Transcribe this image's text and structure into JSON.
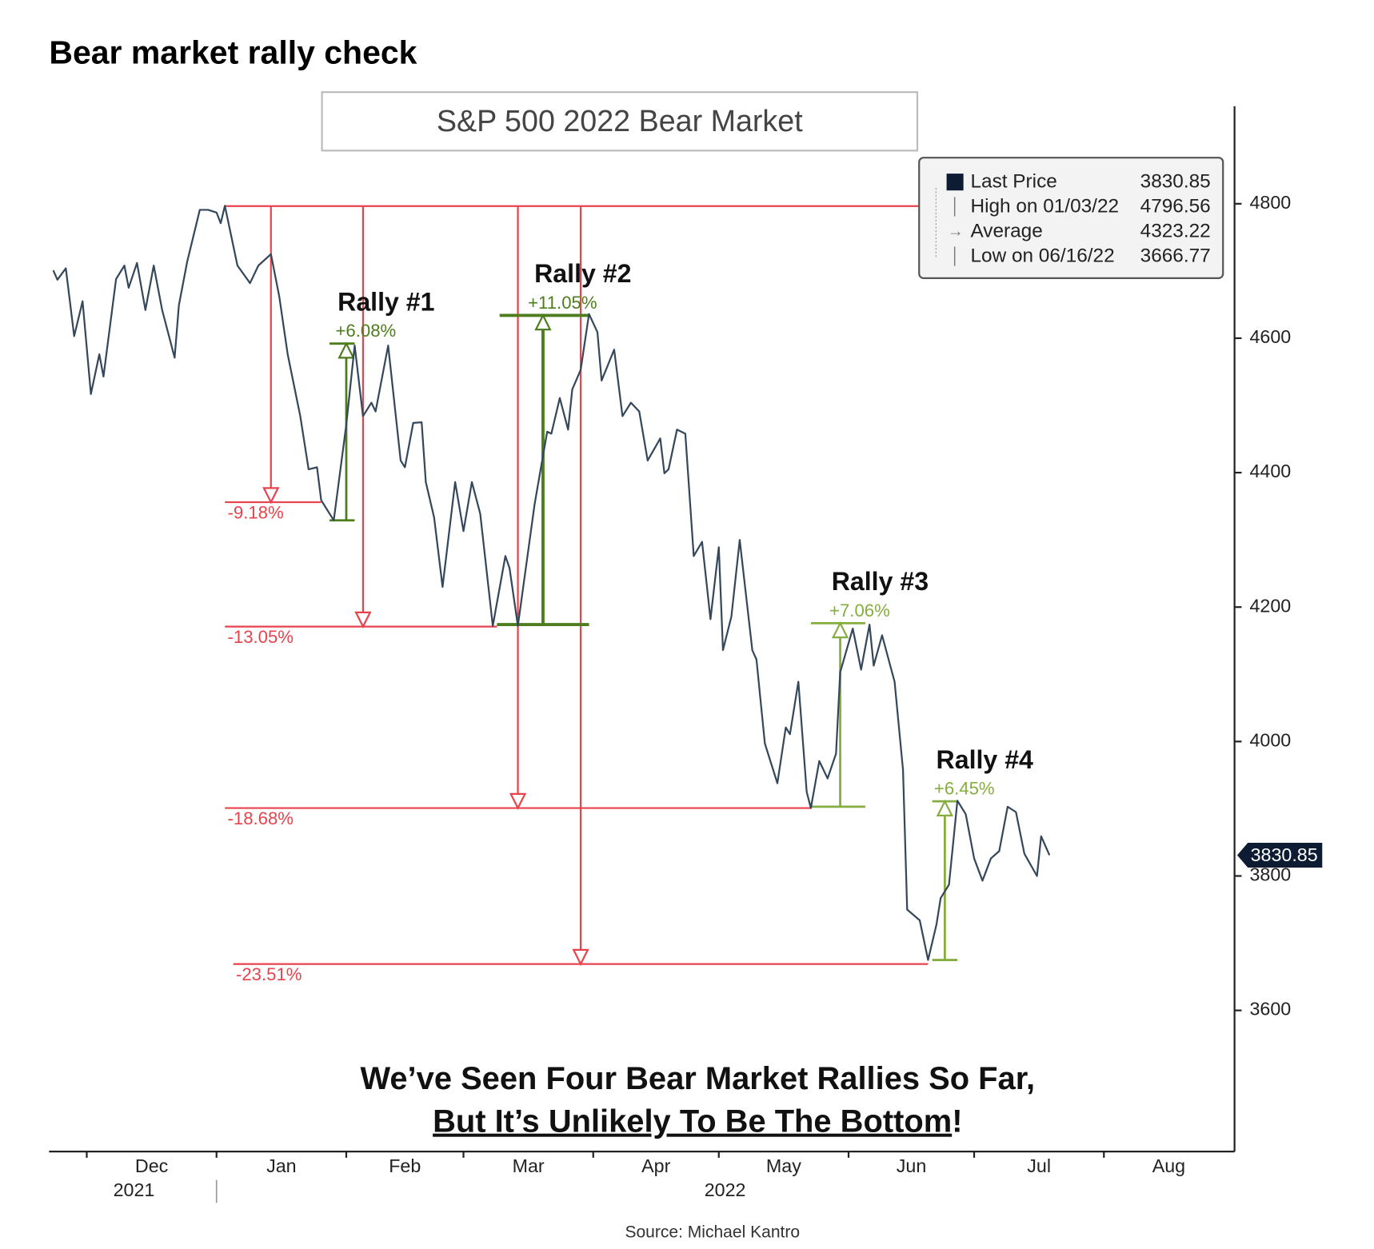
{
  "page_title": "Bear market rally check",
  "source": "Source: Michael Kantro",
  "chart_data": {
    "type": "line",
    "title": "S&P 500 2022 Bear Market",
    "x": [
      "2021-11-23",
      "2021-11-24",
      "2021-11-26",
      "2021-11-28",
      "2021-11-30",
      "2021-12-02",
      "2021-12-04",
      "2021-12-05",
      "2021-12-08",
      "2021-12-10",
      "2021-12-11",
      "2021-12-13",
      "2021-12-15",
      "2021-12-17",
      "2021-12-19",
      "2021-12-22",
      "2021-12-23",
      "2021-12-25",
      "2021-12-28",
      "2021-12-30",
      "2022-01-01",
      "2022-01-02",
      "2022-01-03",
      "2022-01-06",
      "2022-01-09",
      "2022-01-11",
      "2022-01-14",
      "2022-01-16",
      "2022-01-18",
      "2022-01-21",
      "2022-01-23",
      "2022-01-25",
      "2022-01-26",
      "2022-01-29",
      "2022-02-01",
      "2022-02-03",
      "2022-02-05",
      "2022-02-07",
      "2022-02-08",
      "2022-02-11",
      "2022-02-14",
      "2022-02-15",
      "2022-02-17",
      "2022-02-19",
      "2022-02-20",
      "2022-02-22",
      "2022-02-24",
      "2022-02-27",
      "2022-03-01",
      "2022-03-03",
      "2022-03-05",
      "2022-03-08",
      "2022-03-11",
      "2022-03-12",
      "2022-03-14",
      "2022-03-18",
      "2022-03-21",
      "2022-03-22",
      "2022-03-24",
      "2022-03-26",
      "2022-03-27",
      "2022-03-29",
      "2022-03-31",
      "2022-04-02",
      "2022-04-03",
      "2022-04-06",
      "2022-04-08",
      "2022-04-10",
      "2022-04-12",
      "2022-04-14",
      "2022-04-17",
      "2022-04-18",
      "2022-04-19",
      "2022-04-21",
      "2022-04-23",
      "2022-04-25",
      "2022-04-27",
      "2022-04-29",
      "2022-05-01",
      "2022-05-02",
      "2022-05-04",
      "2022-05-06",
      "2022-05-09",
      "2022-05-10",
      "2022-05-12",
      "2022-05-15",
      "2022-05-17",
      "2022-05-18",
      "2022-05-20",
      "2022-05-22",
      "2022-05-23",
      "2022-05-25",
      "2022-05-27",
      "2022-05-29",
      "2022-05-30",
      "2022-06-02",
      "2022-06-04",
      "2022-06-06",
      "2022-06-07",
      "2022-06-09",
      "2022-06-12",
      "2022-06-14",
      "2022-06-15",
      "2022-06-18",
      "2022-06-20",
      "2022-06-22",
      "2022-06-23",
      "2022-06-25",
      "2022-06-27",
      "2022-06-29",
      "2022-07-01",
      "2022-07-03",
      "2022-07-05",
      "2022-07-07",
      "2022-07-09",
      "2022-07-11",
      "2022-07-13",
      "2022-07-16",
      "2022-07-17",
      "2022-07-19"
    ],
    "series": [
      {
        "name": "Last Price",
        "color": "#34475b",
        "values": [
          4701,
          4687,
          4704,
          4603,
          4655,
          4517,
          4576,
          4543,
          4688,
          4708,
          4675,
          4712,
          4642,
          4708,
          4642,
          4571,
          4649,
          4714,
          4791,
          4791,
          4787,
          4771,
          4797,
          4708,
          4682,
          4708,
          4725,
          4662,
          4576,
          4484,
          4405,
          4408,
          4359,
          4329,
          4471,
          4589,
          4484,
          4504,
          4491,
          4589,
          4418,
          4408,
          4474,
          4475,
          4386,
          4333,
          4230,
          4386,
          4313,
          4386,
          4339,
          4172,
          4276,
          4258,
          4172,
          4353,
          4461,
          4458,
          4511,
          4464,
          4524,
          4553,
          4636,
          4609,
          4537,
          4583,
          4484,
          4504,
          4491,
          4418,
          4451,
          4399,
          4405,
          4464,
          4458,
          4276,
          4297,
          4182,
          4289,
          4136,
          4186,
          4300,
          4136,
          4122,
          3997,
          3938,
          4021,
          4011,
          4089,
          3925,
          3901,
          3971,
          3945,
          3982,
          4103,
          4168,
          4107,
          4174,
          4113,
          4158,
          4089,
          3958,
          3750,
          3734,
          3675,
          3728,
          3767,
          3787,
          3912,
          3892,
          3826,
          3793,
          3826,
          3837,
          3903,
          3895,
          3833,
          3800,
          3859,
          3831
        ]
      }
    ],
    "xlim": [
      "2021-11-22",
      "2022-09-01"
    ],
    "xticks": [
      {
        "value": "2021-12-01",
        "label": "Dec"
      },
      {
        "value": "2022-01-01",
        "label": "Jan"
      },
      {
        "value": "2022-02-01",
        "label": "Feb"
      },
      {
        "value": "2022-03-01",
        "label": "Mar"
      },
      {
        "value": "2022-04-01",
        "label": "Apr"
      },
      {
        "value": "2022-05-01",
        "label": "May"
      },
      {
        "value": "2022-06-01",
        "label": "Jun"
      },
      {
        "value": "2022-07-01",
        "label": "Jul"
      },
      {
        "value": "2022-08-01",
        "label": "Aug"
      }
    ],
    "year_labels": [
      "2021",
      "2022"
    ],
    "ylim": [
      3390,
      4945
    ],
    "yticks": [
      3600,
      3800,
      4000,
      4200,
      4400,
      4600,
      4800
    ],
    "legend": {
      "last_price": 3830.85,
      "items": [
        {
          "label": "High on 01/03/22",
          "value": 4796.56
        },
        {
          "label": "Average",
          "value": 4323.22
        },
        {
          "label": "Low on 06/16/22",
          "value": 3666.77
        }
      ]
    },
    "drawdown_color": "#e8434d",
    "drawdowns": [
      {
        "label": "-9.18%",
        "level": 4356,
        "arrow_at": "2022-01-14",
        "start": "2022-01-03",
        "end": "2022-01-26"
      },
      {
        "label": "-13.05%",
        "level": 4171,
        "arrow_at": "2022-02-05",
        "start": "2022-01-03",
        "end": "2022-03-09"
      },
      {
        "label": "-18.68%",
        "level": 3901,
        "arrow_at": "2022-03-14",
        "start": "2022-01-03",
        "end": "2022-05-23"
      },
      {
        "label": "-23.51%",
        "level": 3669,
        "arrow_at": "2022-03-29",
        "start": "2022-01-05",
        "end": "2022-06-20"
      }
    ],
    "rallies": [
      {
        "title": "Rally #1",
        "label": "+6.08%",
        "low": 4329,
        "high": 4592,
        "arrow_at": "2022-02-01",
        "start": "2022-01-28",
        "end": "2022-02-03",
        "color": "#4e7d1e"
      },
      {
        "title": "Rally #2",
        "label": "+11.05%",
        "low": 4174,
        "high": 4634,
        "arrow_at": "2022-03-20",
        "start": "2022-03-09",
        "end": "2022-03-31",
        "color": "#4e7d1e"
      },
      {
        "title": "Rally #3",
        "label": "+7.06%",
        "low": 3903,
        "high": 4176,
        "arrow_at": "2022-05-30",
        "start": "2022-05-23",
        "end": "2022-06-05",
        "color": "#86ad3f"
      },
      {
        "title": "Rally #4",
        "label": "+6.45%",
        "low": 3675,
        "high": 3911,
        "arrow_at": "2022-06-24",
        "start": "2022-06-21",
        "end": "2022-06-27",
        "color": "#86ad3f"
      }
    ],
    "caption": [
      "We’ve Seen Four Bear Market Rallies So Far,",
      "But It’s Unlikely To Be The Bottom",
      "!"
    ]
  }
}
